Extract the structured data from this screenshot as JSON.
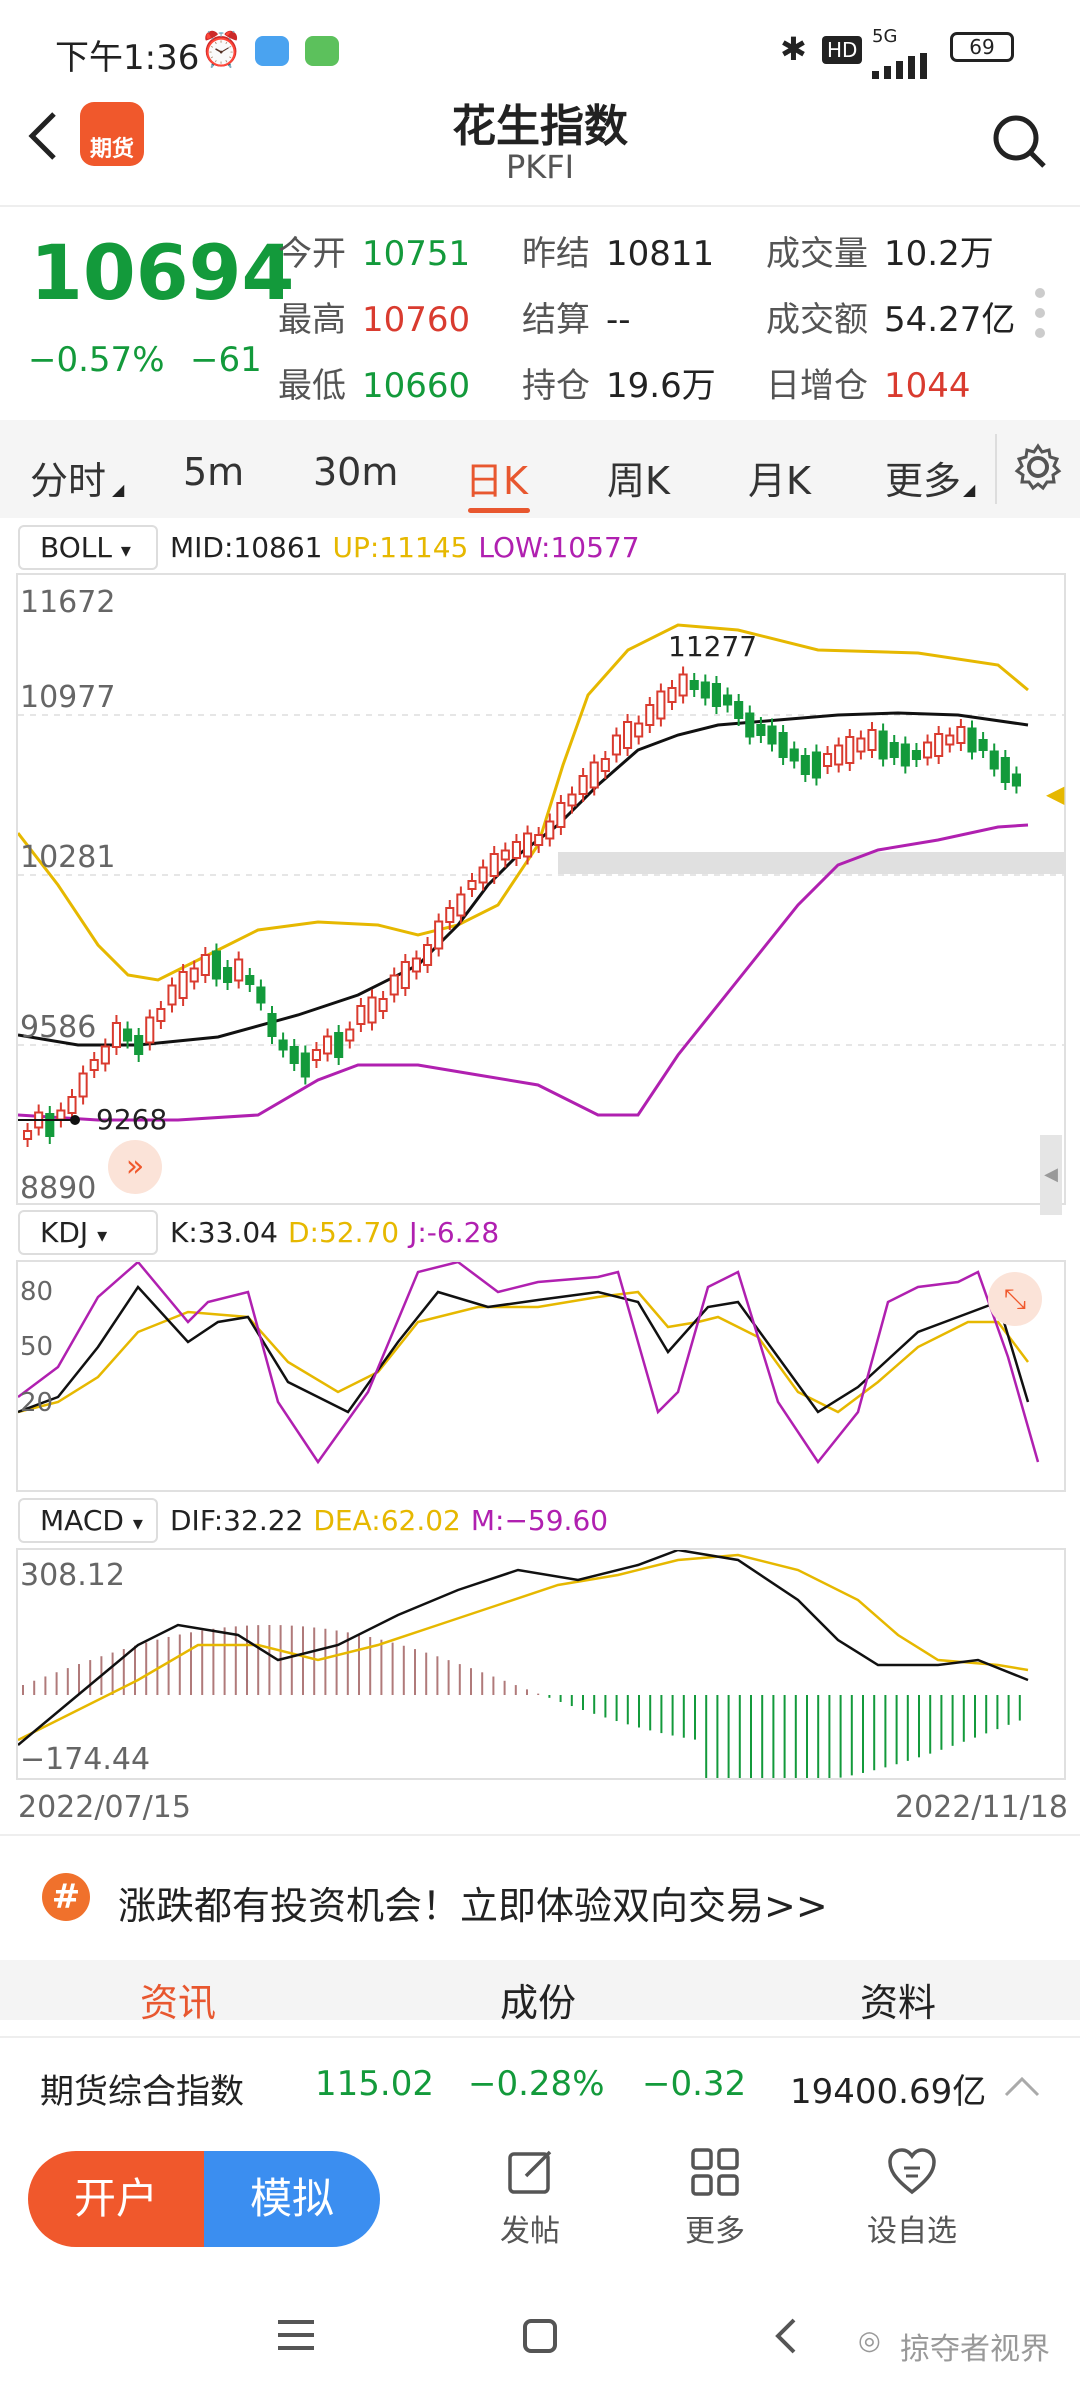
{
  "status": {
    "time": "下午1:36",
    "network": "5G",
    "hd": "HD",
    "battery": "69"
  },
  "header": {
    "title": "花生指数",
    "code": "PKFI",
    "logo_text": "期货"
  },
  "quote": {
    "price": "10694",
    "change_pct": "−0.57%",
    "change": "−61",
    "fields": [
      {
        "label": "今开",
        "value": "10751",
        "color": "#139a3b"
      },
      {
        "label": "昨结",
        "value": "10811",
        "color": "#222222"
      },
      {
        "label": "成交量",
        "value": "10.2万",
        "color": "#222222"
      },
      {
        "label": "最高",
        "value": "10760",
        "color": "#d93b2f"
      },
      {
        "label": "结算",
        "value": "--",
        "color": "#222222"
      },
      {
        "label": "成交额",
        "value": "54.27亿",
        "color": "#222222"
      },
      {
        "label": "最低",
        "value": "10660",
        "color": "#139a3b"
      },
      {
        "label": "持仓",
        "value": "19.6万",
        "color": "#222222"
      },
      {
        "label": "日增仓",
        "value": "1044",
        "color": "#d93b2f"
      }
    ]
  },
  "tabs": [
    "分时",
    "5m",
    "30m",
    "日K",
    "周K",
    "月K",
    "更多"
  ],
  "active_tab": "日K",
  "boll": {
    "name": "BOLL",
    "mid": "MID:10861",
    "up": "UP:11145",
    "low": "LOW:10577"
  },
  "kline_axis": {
    "y_labels": [
      "11672",
      "10977",
      "10281",
      "9586",
      "8890"
    ],
    "high_mark": "11277",
    "low_mark": "9268"
  },
  "kdj": {
    "name": "KDJ",
    "k": "K:33.04",
    "d": "D:52.70",
    "j": "J:-6.28",
    "y_labels": [
      "80",
      "50",
      "20"
    ]
  },
  "macd": {
    "name": "MACD",
    "dif": "DIF:32.22",
    "dea": "DEA:62.02",
    "m": "M:−59.60",
    "y_top": "308.12",
    "y_bottom": "−174.44"
  },
  "date_range": {
    "start": "2022/07/15",
    "end": "2022/11/18"
  },
  "banner": {
    "text": "涨跌都有投资机会！立即体验双向交易>>",
    "icon": "#"
  },
  "subtabs": [
    "资讯",
    "成份",
    "资料"
  ],
  "ticker": {
    "name": "期货综合指数",
    "price": "115.02",
    "pct": "−0.28%",
    "chg": "−0.32",
    "amount": "19400.69亿"
  },
  "bottom": {
    "open": "开户",
    "sim": "模拟",
    "post": "发帖",
    "more": "更多",
    "watch": "设自选"
  },
  "watermark": "掠夺者视界",
  "colors": {
    "up": "#d93b2f",
    "down": "#139a3b",
    "accent": "#e8572f",
    "yellow": "#e6b800",
    "purple": "#b020b0"
  }
}
